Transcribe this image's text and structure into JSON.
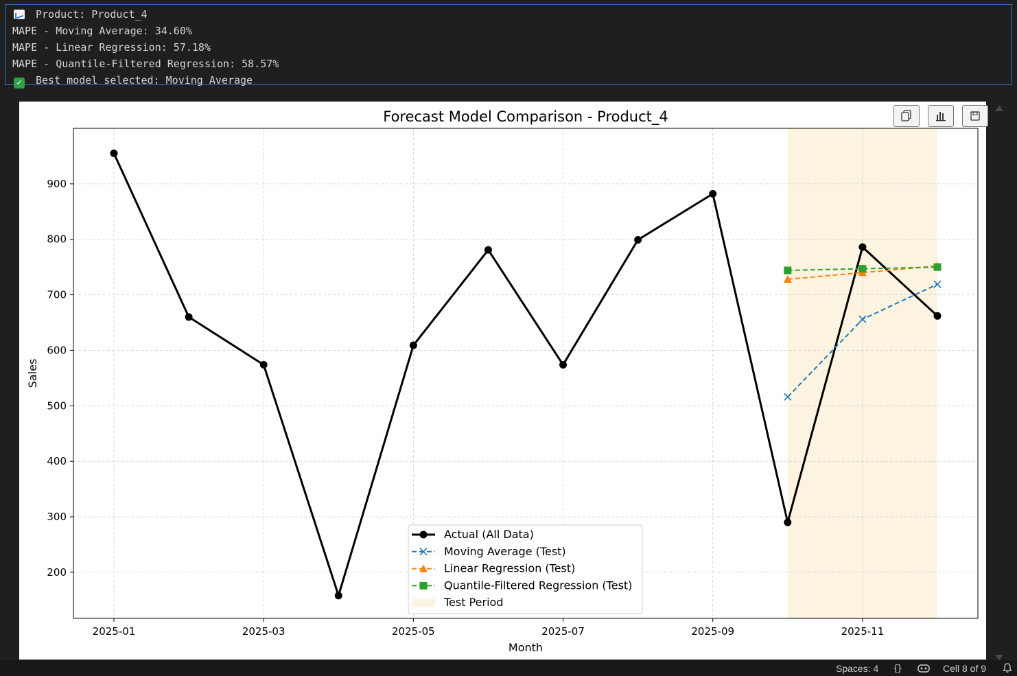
{
  "output": {
    "lines": [
      {
        "icon": "chart-increasing-icon",
        "text": "Product: Product_4"
      },
      {
        "text": "MAPE - Moving Average: 34.60%"
      },
      {
        "text": "MAPE - Linear Regression: 57.18%"
      },
      {
        "text": "MAPE - Quantile-Filtered Regression: 58.57%"
      },
      {
        "icon": "check-mark-icon",
        "text": "Best model selected: Moving Average"
      }
    ]
  },
  "toolbar": {
    "copy_icon": "copy-icon",
    "chart_icon": "bar-chart-icon",
    "save_icon": "save-icon"
  },
  "chart_data": {
    "type": "line",
    "title": "Forecast Model Comparison - Product_4",
    "xlabel": "Month",
    "ylabel": "Sales",
    "grid": true,
    "legend_position": "bottom-center",
    "x": [
      "2025-01",
      "2025-02",
      "2025-03",
      "2025-04",
      "2025-05",
      "2025-06",
      "2025-07",
      "2025-08",
      "2025-09",
      "2025-10",
      "2025-11",
      "2025-12"
    ],
    "x_tick_labels": [
      "2025-01",
      "2025-03",
      "2025-05",
      "2025-07",
      "2025-09",
      "2025-11"
    ],
    "y_ticks": [
      200,
      300,
      400,
      500,
      600,
      700,
      800,
      900
    ],
    "ylim": [
      117,
      1000
    ],
    "series": [
      {
        "name": "Actual (All Data)",
        "color": "#000000",
        "marker": "circle",
        "dash": "solid",
        "x": [
          "2025-01",
          "2025-02",
          "2025-03",
          "2025-04",
          "2025-05",
          "2025-06",
          "2025-07",
          "2025-08",
          "2025-09",
          "2025-10",
          "2025-11",
          "2025-12"
        ],
        "values": [
          955,
          660,
          574,
          158,
          609,
          781,
          574,
          799,
          882,
          290,
          786,
          662
        ]
      },
      {
        "name": "Moving Average (Test)",
        "color": "#1f77b4",
        "marker": "x",
        "dash": "dashed",
        "x": [
          "2025-10",
          "2025-11",
          "2025-12"
        ],
        "values": [
          516,
          656,
          719
        ]
      },
      {
        "name": "Linear Regression (Test)",
        "color": "#ff7f0e",
        "marker": "triangle",
        "dash": "dashed",
        "x": [
          "2025-10",
          "2025-11",
          "2025-12"
        ],
        "values": [
          728,
          740,
          752
        ]
      },
      {
        "name": "Quantile-Filtered Regression (Test)",
        "color": "#2ca02c",
        "marker": "square",
        "dash": "dashed",
        "x": [
          "2025-10",
          "2025-11",
          "2025-12"
        ],
        "values": [
          744,
          747,
          750
        ]
      }
    ],
    "shaded_region": {
      "name": "Test Period",
      "from": "2025-10",
      "to": "2025-12",
      "color": "#fdf3e1"
    }
  },
  "status_bar": {
    "spaces": "Spaces: 4",
    "braces_icon": "curly-braces-icon",
    "copilot_icon": "copilot-icon",
    "cell": "Cell 8 of 9",
    "bell_icon": "bell-icon"
  }
}
